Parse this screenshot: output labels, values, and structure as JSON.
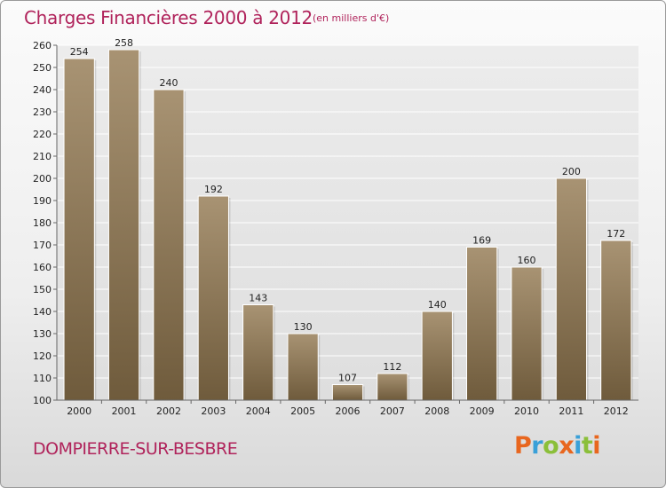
{
  "header": {
    "title": "Charges Financières 2000 à 2012",
    "subtitle": "(en milliers d'€)"
  },
  "footer": {
    "commune": "DOMPIERRE-SUR-BESBRE",
    "logo": {
      "letters": [
        "P",
        "r",
        "o",
        "x",
        "i",
        "t",
        "i"
      ],
      "colors": [
        "#e8661e",
        "#3aa0d8",
        "#8bbf3a",
        "#e8661e",
        "#3aa0d8",
        "#8bbf3a",
        "#e8661e"
      ]
    }
  },
  "chart_data": {
    "type": "bar",
    "title": "Charges Financières 2000 à 2012",
    "subtitle": "(en milliers d'€)",
    "categories": [
      "2000",
      "2001",
      "2002",
      "2003",
      "2004",
      "2005",
      "2006",
      "2007",
      "2008",
      "2009",
      "2010",
      "2011",
      "2012"
    ],
    "values": [
      254,
      258,
      240,
      192,
      143,
      130,
      107,
      112,
      140,
      169,
      160,
      200,
      172
    ],
    "ylim": [
      100,
      260
    ],
    "yticks": [
      100,
      110,
      120,
      130,
      140,
      150,
      160,
      170,
      180,
      190,
      200,
      210,
      220,
      230,
      240,
      250,
      260
    ],
    "grid": true,
    "bar_color": "#8b7556",
    "data_labels": true
  }
}
